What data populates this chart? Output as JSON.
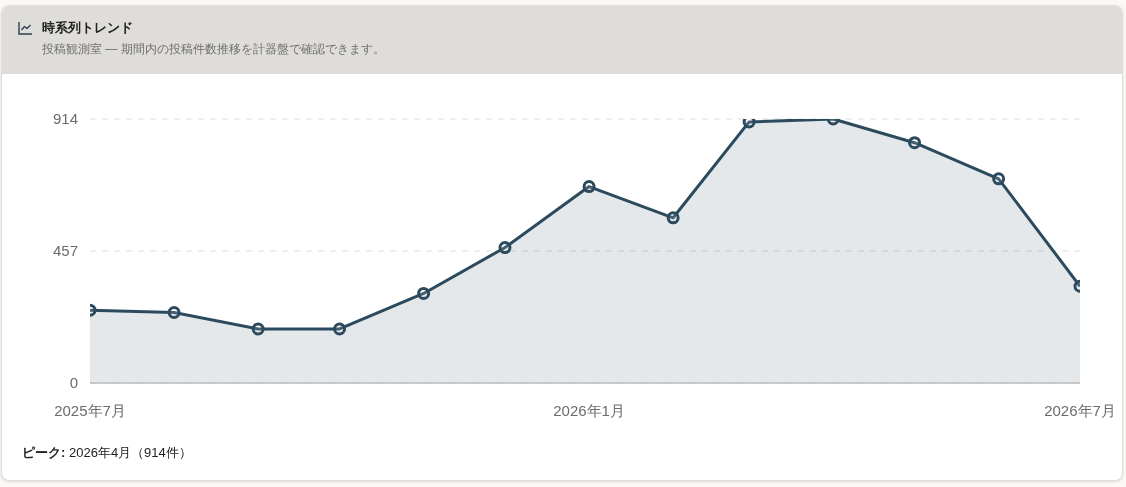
{
  "chart_data": {
    "type": "area",
    "title": "時系列トレンド",
    "subtitle": "投稿観測室 — 期間内の投稿件数推移を計器盤で確認できます。",
    "x": [
      "2025-07",
      "2025-08",
      "2025-09",
      "2025-10",
      "2025-11",
      "2025-12",
      "2026-01",
      "2026-02",
      "2026-03",
      "2026-04",
      "2026-05",
      "2026-06",
      "2026-07"
    ],
    "values": [
      252,
      244,
      187,
      187,
      310,
      469,
      680,
      572,
      904,
      914,
      832,
      707,
      335
    ],
    "color": "#2c4a5e",
    "xlim": [
      "2025-07",
      "2026-07"
    ],
    "xticks": [
      {
        "value": "2025-07",
        "label": "2025年7月"
      },
      {
        "value": "2026-01",
        "label": "2026年1月"
      },
      {
        "value": "2026-07",
        "label": "2026年7月"
      }
    ],
    "ylim": [
      0,
      914
    ],
    "yticks": [
      0,
      457,
      914
    ],
    "grid": "y",
    "marker": "circle",
    "annotations": [
      "ピーク: 2026年4月（914件）"
    ]
  }
}
